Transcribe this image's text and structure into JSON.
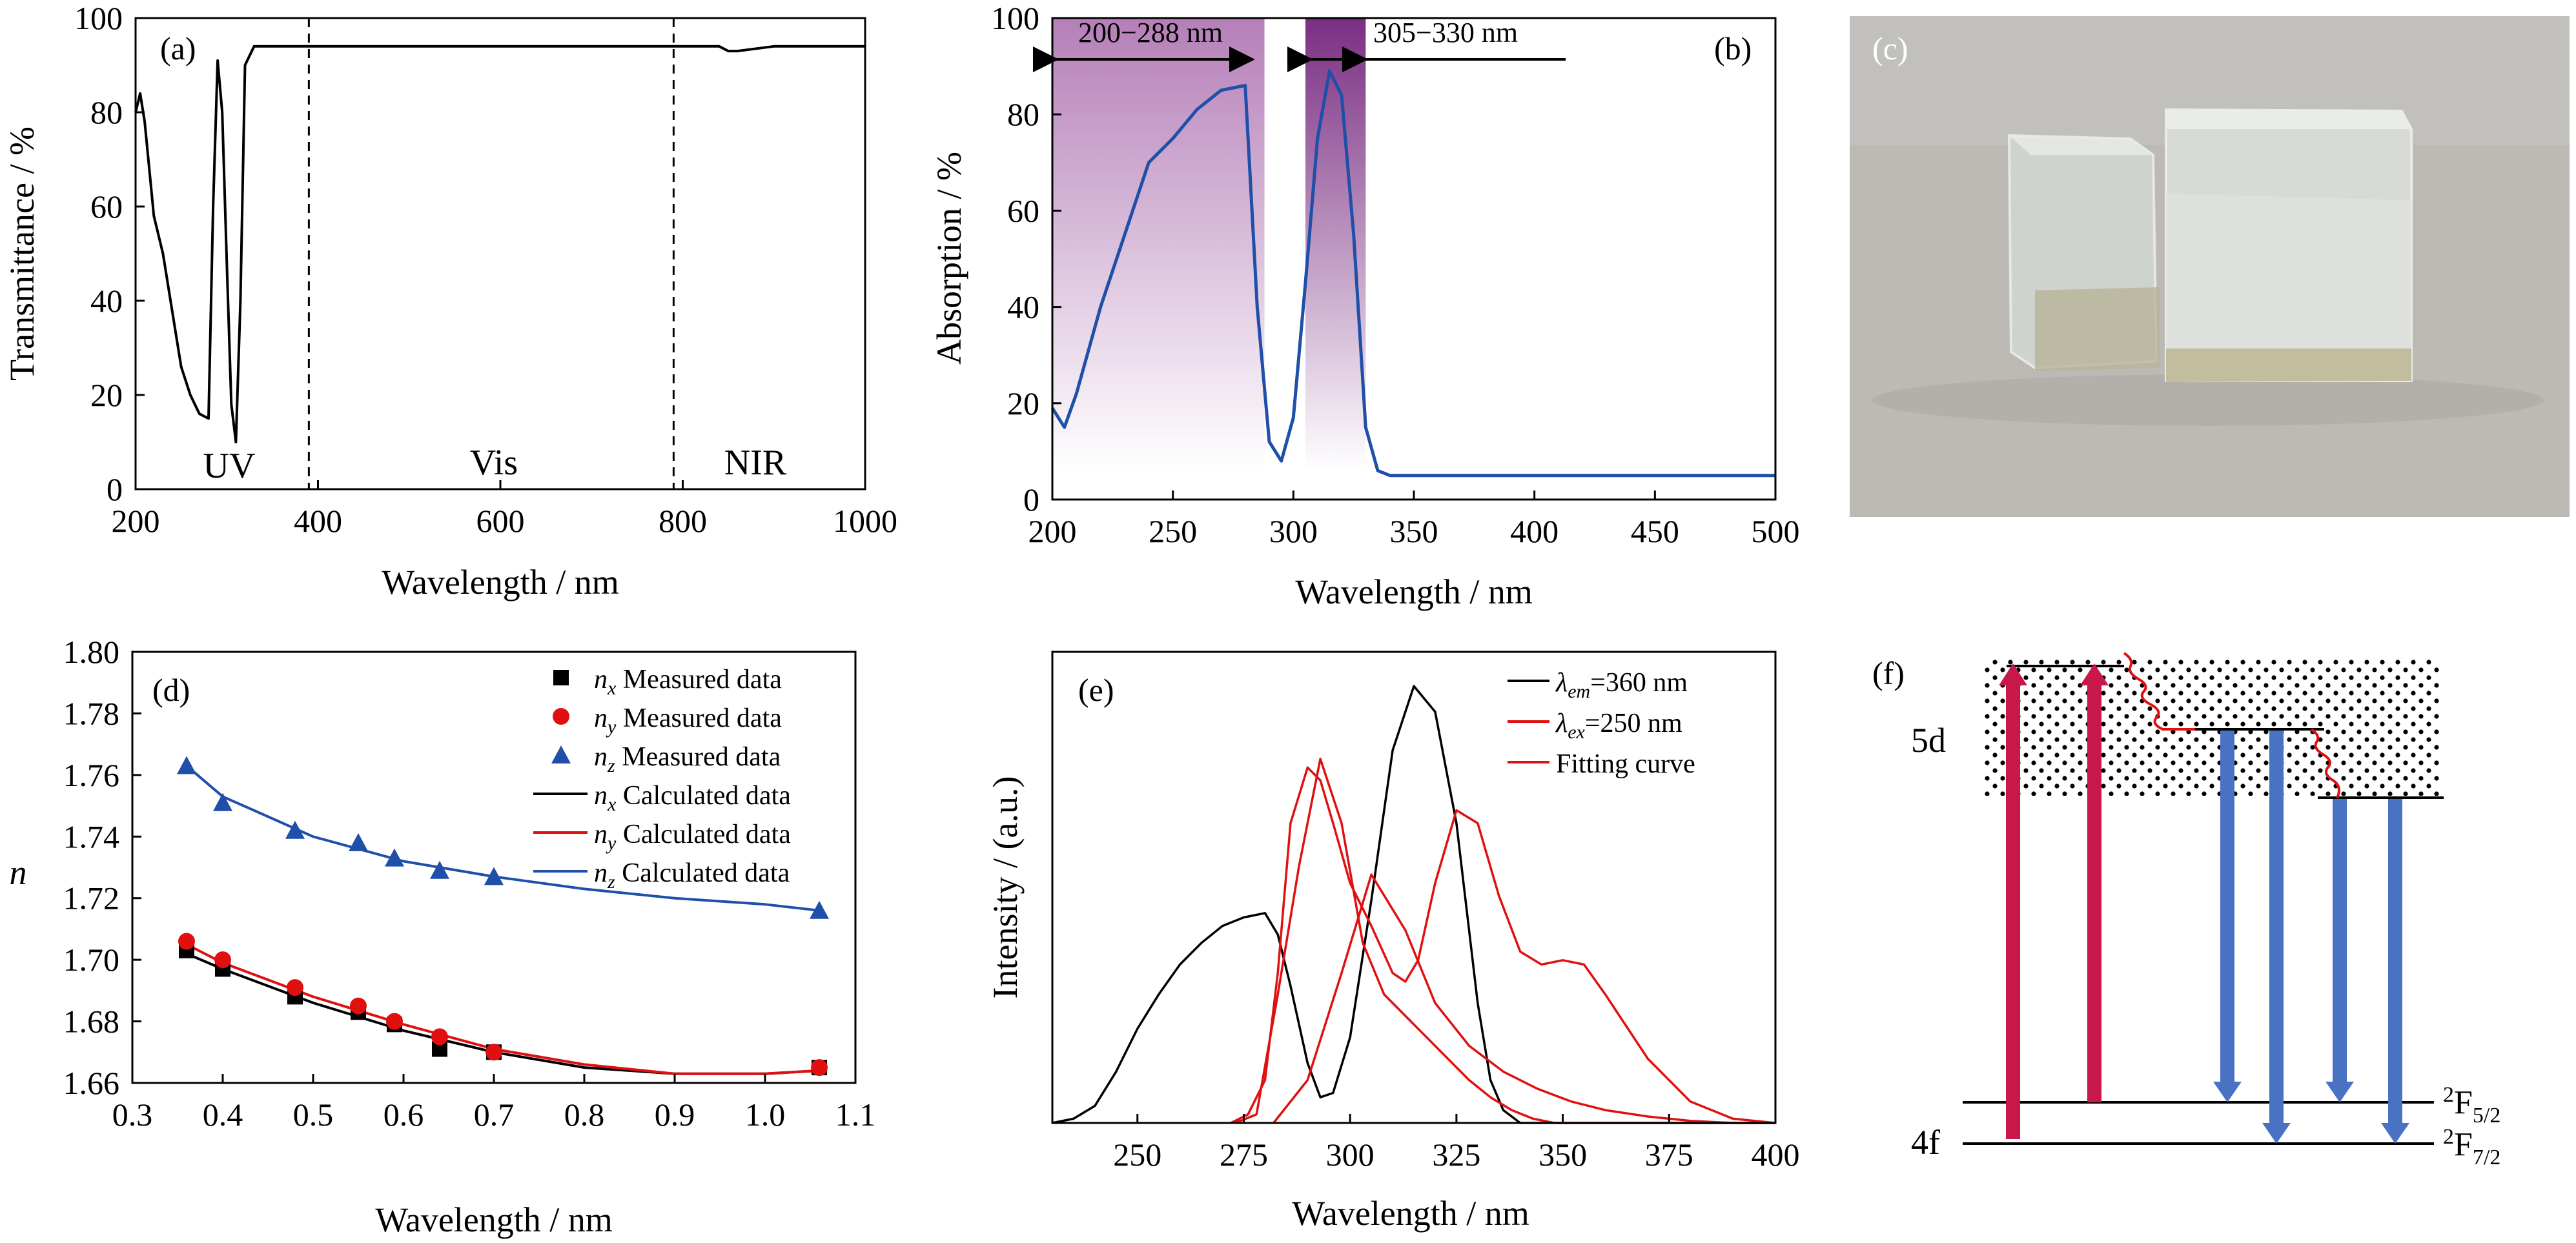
{
  "panels": {
    "a": {
      "label": "(a)",
      "xlabel": "Wavelength / nm",
      "ylabel": "Transmittance / %",
      "xticks": [
        "200",
        "400",
        "600",
        "800",
        "1000"
      ],
      "yticks": [
        "0",
        "20",
        "40",
        "60",
        "80",
        "100"
      ],
      "region_labels": [
        "UV",
        "Vis",
        "NIR"
      ]
    },
    "b": {
      "label": "(b)",
      "xlabel": "Wavelength / nm",
      "ylabel": "Absorption / %",
      "xticks": [
        "200",
        "250",
        "300",
        "350",
        "400",
        "450",
        "500"
      ],
      "yticks": [
        "0",
        "20",
        "40",
        "60",
        "80",
        "100"
      ],
      "band1": "200−288 nm",
      "band2": "305−330 nm"
    },
    "c": {
      "label": "(c)"
    },
    "d": {
      "label": "(d)",
      "xlabel": "Wavelength / nm",
      "ylabel": "n",
      "xticks": [
        "0.3",
        "0.4",
        "0.5",
        "0.6",
        "0.7",
        "0.8",
        "0.9",
        "1.0",
        "1.1"
      ],
      "yticks": [
        "1.66",
        "1.68",
        "1.70",
        "1.72",
        "1.74",
        "1.76",
        "1.78",
        "1.80"
      ],
      "legend": [
        {
          "sym": "n",
          "sub": "x",
          "text": " Measured data"
        },
        {
          "sym": "n",
          "sub": "y",
          "text": " Measured data"
        },
        {
          "sym": "n",
          "sub": "z",
          "text": " Measured data"
        },
        {
          "sym": "n",
          "sub": "x",
          "text": " Calculated data"
        },
        {
          "sym": "n",
          "sub": "y",
          "text": " Calculated data"
        },
        {
          "sym": "n",
          "sub": "z",
          "text": " Calculated data"
        }
      ]
    },
    "e": {
      "label": "(e)",
      "xlabel": "Wavelength / nm",
      "ylabel": "Intensity / (a.u.)",
      "xticks": [
        "250",
        "275",
        "300",
        "325",
        "350",
        "375",
        "400"
      ],
      "legend": [
        {
          "sym": "λ",
          "sub": "em",
          "text": "=360 nm"
        },
        {
          "sym": "λ",
          "sub": "ex",
          "text": "=250 nm"
        },
        {
          "sym": "",
          "sub": "",
          "text": "Fitting curve"
        }
      ]
    },
    "f": {
      "label": "(f)",
      "level_5d": "5d",
      "level_4f": "4f",
      "term1": "F",
      "term1_sup": "2",
      "term1_sub": "5/2",
      "term2": "F",
      "term2_sup": "2",
      "term2_sub": "7/2"
    }
  },
  "colors": {
    "blue": "#1f4fa8",
    "red": "#e01010",
    "purple_band": "#7a2e82",
    "crimson": "#c8184a",
    "arrow_blue": "#4a72c4"
  },
  "chart_data": [
    {
      "panel": "a",
      "type": "line",
      "xlim": [
        200,
        1000
      ],
      "ylim": [
        0,
        100
      ],
      "series": [
        {
          "x": [
            200,
            205,
            210,
            220,
            230,
            240,
            250,
            260,
            270,
            280,
            285,
            290,
            295,
            300,
            305,
            310,
            315,
            320,
            330,
            400,
            600,
            800,
            840,
            850,
            860,
            900,
            1000
          ],
          "values": [
            80,
            84,
            78,
            58,
            50,
            38,
            26,
            20,
            16,
            15,
            60,
            91,
            80,
            48,
            18,
            10,
            40,
            90,
            94,
            94,
            94,
            94,
            94,
            93,
            93,
            94,
            94
          ]
        }
      ],
      "dividers": [
        390,
        790
      ]
    },
    {
      "panel": "b",
      "type": "line",
      "xlim": [
        200,
        500
      ],
      "ylim": [
        0,
        100
      ],
      "series": [
        {
          "x": [
            200,
            205,
            210,
            220,
            230,
            240,
            250,
            260,
            270,
            280,
            285,
            290,
            295,
            300,
            305,
            310,
            315,
            320,
            325,
            330,
            335,
            340,
            400,
            500
          ],
          "values": [
            19,
            15,
            22,
            40,
            55,
            70,
            75,
            81,
            85,
            86,
            40,
            12,
            8,
            17,
            45,
            75,
            89,
            84,
            55,
            15,
            6,
            5,
            5,
            5
          ]
        }
      ],
      "bands": [
        [
          200,
          288
        ],
        [
          305,
          330
        ]
      ]
    },
    {
      "panel": "d",
      "type": "scatter",
      "xlim": [
        0.3,
        1.1
      ],
      "ylim": [
        1.66,
        1.8
      ],
      "series": [
        {
          "name": "nx Measured data",
          "x": [
            0.36,
            0.4,
            0.48,
            0.55,
            0.59,
            0.64,
            0.7,
            1.06
          ],
          "values": [
            1.703,
            1.697,
            1.688,
            1.683,
            1.679,
            1.671,
            1.67,
            1.665
          ]
        },
        {
          "name": "ny Measured data",
          "x": [
            0.36,
            0.4,
            0.48,
            0.55,
            0.59,
            0.64,
            0.7,
            1.06
          ],
          "values": [
            1.706,
            1.7,
            1.691,
            1.685,
            1.68,
            1.675,
            1.67,
            1.665
          ]
        },
        {
          "name": "nz Measured data",
          "x": [
            0.36,
            0.4,
            0.48,
            0.55,
            0.59,
            0.64,
            0.7,
            1.06
          ],
          "values": [
            1.763,
            1.751,
            1.742,
            1.738,
            1.733,
            1.729,
            1.727,
            1.716
          ]
        },
        {
          "name": "nx Calculated data",
          "x": [
            0.36,
            0.4,
            0.5,
            0.6,
            0.7,
            0.8,
            0.9,
            1.0,
            1.06
          ],
          "values": [
            1.702,
            1.697,
            1.686,
            1.677,
            1.67,
            1.665,
            1.663,
            1.663,
            1.664
          ]
        },
        {
          "name": "ny Calculated data",
          "x": [
            0.36,
            0.4,
            0.5,
            0.6,
            0.7,
            0.8,
            0.9,
            1.0,
            1.06
          ],
          "values": [
            1.705,
            1.699,
            1.688,
            1.679,
            1.671,
            1.666,
            1.663,
            1.663,
            1.664
          ]
        },
        {
          "name": "nz Calculated data",
          "x": [
            0.36,
            0.4,
            0.5,
            0.6,
            0.7,
            0.8,
            0.9,
            1.0,
            1.06
          ],
          "values": [
            1.763,
            1.753,
            1.74,
            1.732,
            1.727,
            1.723,
            1.72,
            1.718,
            1.716
          ]
        }
      ]
    },
    {
      "panel": "e",
      "type": "line",
      "xlim": [
        230,
        400
      ],
      "ylim": [
        0,
        1.1
      ],
      "series": [
        {
          "name": "λem=360 nm",
          "x": [
            230,
            235,
            240,
            245,
            250,
            255,
            260,
            265,
            270,
            275,
            280,
            283,
            286,
            290,
            293,
            296,
            300,
            305,
            310,
            315,
            320,
            325,
            330,
            333,
            336,
            340,
            400
          ],
          "values": [
            0,
            0.01,
            0.04,
            0.12,
            0.22,
            0.3,
            0.37,
            0.42,
            0.46,
            0.48,
            0.49,
            0.44,
            0.32,
            0.14,
            0.06,
            0.07,
            0.2,
            0.52,
            0.87,
            1.02,
            0.96,
            0.7,
            0.28,
            0.1,
            0.03,
            0.0,
            0.0
          ]
        },
        {
          "name": "λex=250 nm",
          "x": [
            272,
            276,
            280,
            283,
            286,
            290,
            293,
            296,
            300,
            305,
            310,
            313,
            316,
            320,
            325,
            330,
            335,
            340,
            345,
            350,
            355,
            360,
            370,
            380,
            390,
            400
          ],
          "values": [
            0,
            0.02,
            0.1,
            0.35,
            0.7,
            0.83,
            0.8,
            0.7,
            0.56,
            0.46,
            0.35,
            0.33,
            0.38,
            0.56,
            0.73,
            0.7,
            0.53,
            0.4,
            0.37,
            0.38,
            0.37,
            0.3,
            0.15,
            0.05,
            0.01,
            0.0
          ]
        },
        {
          "name": "Fitting curve",
          "x": [
            273,
            278,
            283,
            288,
            293,
            298,
            303,
            308,
            313,
            318,
            323,
            328,
            333,
            338,
            343,
            348,
            353,
            358,
            363,
            368,
            373,
            380,
            390,
            400
          ],
          "values": [
            0,
            0.02,
            0.3,
            0.6,
            0.85,
            0.7,
            0.42,
            0.3,
            0.25,
            0.2,
            0.15,
            0.1,
            0.06,
            0.03,
            0.01,
            0.0,
            0.0,
            0.0,
            0.0,
            0.0,
            0.0,
            0.0,
            0.0,
            0.0
          ]
        }
      ]
    }
  ]
}
